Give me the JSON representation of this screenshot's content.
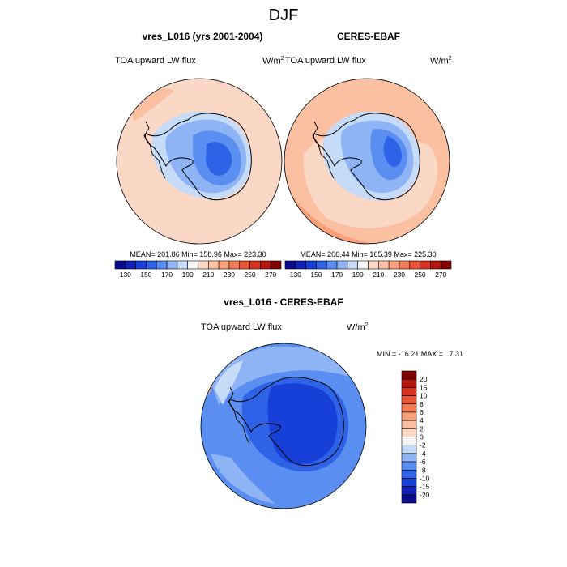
{
  "title": "DJF",
  "panels": {
    "model": {
      "title": "vres_L016 (yrs 2001-2004)",
      "variable": "TOA upward LW flux",
      "units_base": "W/m",
      "units_exp": "2",
      "stats": "MEAN= 201.86  Min= 158.96  Max= 223.30"
    },
    "obs": {
      "title": "CERES-EBAF",
      "variable": "TOA upward LW flux",
      "units_base": "W/m",
      "units_exp": "2",
      "stats": "MEAN= 206.44  Min= 165.39  Max= 225.30"
    },
    "diff": {
      "title": "vres_L016 - CERES-EBAF",
      "variable": "TOA upward LW flux",
      "units_base": "W/m",
      "units_exp": "2",
      "stats": "MIN = -16.21 MAX =   7.31"
    }
  },
  "colorbars": {
    "absolute": {
      "colors": [
        "#0a0a8c",
        "#0f22b4",
        "#1640d8",
        "#2e63e8",
        "#5a8ef0",
        "#8fb4f6",
        "#c5dbf8",
        "#f5f5f5",
        "#fbd8c6",
        "#fbc0a2",
        "#f7a07a",
        "#f27d55",
        "#ea5533",
        "#d6321d",
        "#b4180f",
        "#800000"
      ],
      "labels": [
        "130",
        "150",
        "170",
        "190",
        "210",
        "230",
        "250",
        "270"
      ]
    },
    "difference": {
      "colors": [
        "#800000",
        "#b4180f",
        "#d6321d",
        "#ea5533",
        "#f27d55",
        "#f7a07a",
        "#fbc0a2",
        "#fbd8c6",
        "#f5f5f5",
        "#c5dbf8",
        "#8fb4f6",
        "#5a8ef0",
        "#2e63e8",
        "#1640d8",
        "#0f22b4",
        "#0a0a8c"
      ],
      "labels": [
        "20",
        "15",
        "10",
        "8",
        "6",
        "4",
        "2",
        "0",
        "-2",
        "-4",
        "-6",
        "-8",
        "-10",
        "-15",
        "-20"
      ]
    }
  },
  "map_colors": {
    "ocean_model": "#fbd8c6",
    "ocean_obs": "#fbc0a2",
    "ocean_obs_outer": "#f7a07a",
    "ice_light": "#c5dbf8",
    "ice_mid": "#8fb4f6",
    "ice_dark": "#5a8ef0",
    "ice_core": "#2e63e8",
    "diff_base": "#5a8ef0",
    "diff_light": "#8fb4f6",
    "diff_pale": "#c5dbf8",
    "diff_deep": "#2e63e8",
    "diff_core": "#1640d8",
    "diff_warm": "#f7a07a"
  }
}
